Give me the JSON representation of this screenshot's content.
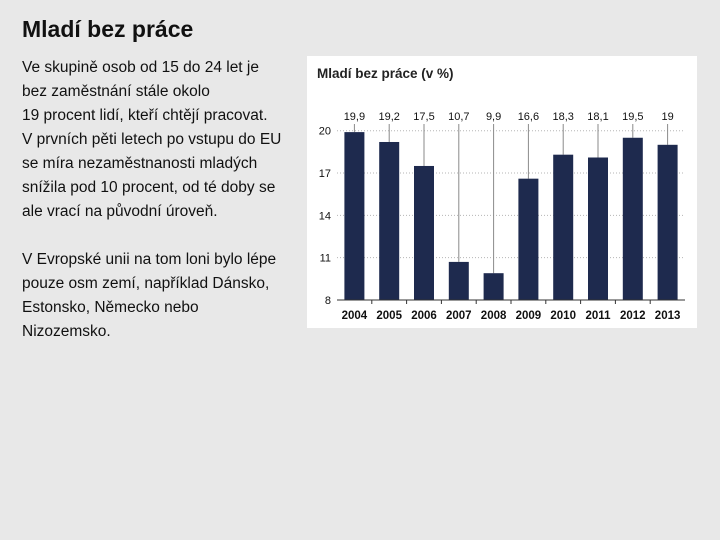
{
  "page": {
    "title": "Mladí bez práce",
    "paragraphs": [
      "Ve skupině osob od 15 do 24 let je\nbez zaměstnání stále okolo\n19 procent lidí, kteří chtějí pracovat.\nV prvních pěti letech po vstupu do EU\nse míra nezaměstnanosti mladých\nsnížila pod 10 procent, od té doby se\nale vrací na původní úroveň.",
      "V Evropské unii na tom loni bylo lépe\npouze osm zemí, například Dánsko,\nEstonsko, Německo nebo\nNizozemsko."
    ]
  },
  "colors": {
    "bar": "#1e2a4e",
    "grid": "#b5b5b5",
    "leader": "#8a8a8a",
    "panel": "#ffffff"
  },
  "chart_data": {
    "type": "bar",
    "title": "Mladí bez práce (v %)",
    "categories": [
      "2004",
      "2005",
      "2006",
      "2007",
      "2008",
      "2009",
      "2010",
      "2011",
      "2012",
      "2013"
    ],
    "values": [
      19.9,
      19.2,
      17.5,
      10.7,
      9.9,
      16.6,
      18.3,
      18.1,
      19.5,
      19
    ],
    "value_labels": [
      "19,9",
      "19,2",
      "17,5",
      "10,7",
      "9,9",
      "16,6",
      "18,3",
      "18,1",
      "19,5",
      "19"
    ],
    "yticks": [
      8,
      11,
      14,
      17,
      20
    ],
    "ylim": [
      8,
      20.9
    ],
    "grid": true,
    "legend": "none"
  }
}
